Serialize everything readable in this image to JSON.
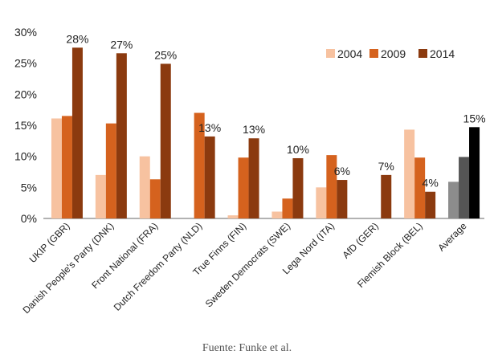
{
  "caption": "Fuente: Funke et al.",
  "colors": {
    "2004": "#f7c2a0",
    "2009": "#d5621e",
    "2014": "#8b3a0f",
    "avg_2004": "#8c8c8c",
    "avg_2009": "#555555",
    "avg_2014": "#000000",
    "axis": "#666666",
    "gridline": "#e6e6e6"
  },
  "chart_data": {
    "type": "bar",
    "categories": [
      "UKIP (GBR)",
      "Danish People's Party (DNK)",
      "Front National (FRA)",
      "Dutch Freedom Party (NLD)",
      "True Finns (FIN)",
      "Sweden Democrats (SWE)",
      "Lega Nord (ITA)",
      "AfD (GER)",
      "Flemish Block (BEL)",
      "Average"
    ],
    "series": [
      {
        "name": "2004",
        "values": [
          16.1,
          7.0,
          10.0,
          null,
          0.5,
          1.1,
          5.0,
          null,
          14.3,
          5.9
        ]
      },
      {
        "name": "2009",
        "values": [
          16.5,
          15.3,
          6.3,
          17.0,
          9.8,
          3.2,
          10.2,
          null,
          9.8,
          9.9
        ]
      },
      {
        "name": "2014",
        "values": [
          27.5,
          26.6,
          24.9,
          13.2,
          12.9,
          9.7,
          6.2,
          7.0,
          4.3,
          14.7
        ]
      }
    ],
    "data_labels": [
      "28%",
      "27%",
      "25%",
      "13%",
      "13%",
      "10%",
      "6%",
      "7%",
      "4%",
      "15%"
    ],
    "y_ticks": [
      "0%",
      "5%",
      "10%",
      "15%",
      "20%",
      "25%",
      "30%"
    ],
    "ylim": [
      0,
      30
    ],
    "legend": {
      "position": "top-right",
      "entries": [
        "2004",
        "2009",
        "2014"
      ]
    },
    "grid": false,
    "title": "",
    "xlabel": "",
    "ylabel": ""
  }
}
